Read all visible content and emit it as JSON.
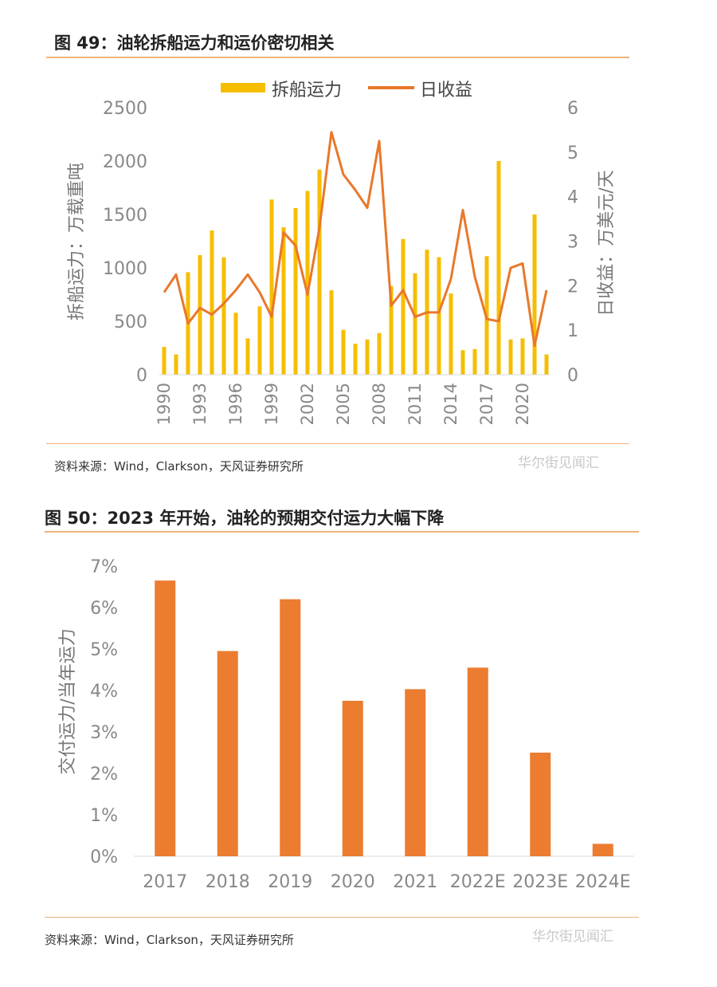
{
  "figure49": {
    "title": "图 49：油轮拆船运力和运价密切相关",
    "source": "资料来源：Wind，Clarkson，天风证券研究所",
    "watermark": "华尔街见闻汇",
    "legend": {
      "bar": "拆船运力",
      "line": "日收益"
    },
    "colors": {
      "bar": "#f6be00",
      "line": "#e8782b"
    }
  },
  "figure50": {
    "title": "图 50：2023 年开始，油轮的预期交付运力大幅下降",
    "source": "资料来源：Wind，Clarkson，天风证券研究所",
    "watermark": "华尔街见闻汇",
    "colors": {
      "bar": "#ec7c30"
    }
  },
  "chart_data": [
    {
      "type": "bar",
      "title": "图 49：油轮拆船运力和运价密切相关",
      "ylabel": "拆船运力：万载重吨",
      "y2label": "日收益：万美元/天",
      "ylim": [
        0,
        2500
      ],
      "y2lim": [
        0,
        6
      ],
      "yticks": [
        0,
        500,
        1000,
        1500,
        2000,
        2500
      ],
      "y2ticks": [
        0,
        1,
        2,
        3,
        4,
        5,
        6
      ],
      "x": [
        1990,
        1991,
        1992,
        1993,
        1994,
        1995,
        1996,
        1997,
        1998,
        1999,
        2000,
        2001,
        2002,
        2003,
        2004,
        2005,
        2006,
        2007,
        2008,
        2009,
        2010,
        2011,
        2012,
        2013,
        2014,
        2015,
        2016,
        2017,
        2018,
        2019,
        2020,
        2021,
        2022
      ],
      "xticks": [
        "1990",
        "1993",
        "1996",
        "1999",
        "2002",
        "2005",
        "2008",
        "2011",
        "2014",
        "2017",
        "2020"
      ],
      "legend_position": "top",
      "series": [
        {
          "name": "拆船运力",
          "type": "bar",
          "axis": "left",
          "values": [
            260,
            190,
            960,
            1120,
            1350,
            1100,
            580,
            340,
            640,
            1640,
            1380,
            1560,
            1720,
            1920,
            790,
            420,
            290,
            330,
            390,
            830,
            1270,
            950,
            1170,
            1100,
            760,
            230,
            240,
            1110,
            2000,
            330,
            340,
            1500,
            190
          ]
        },
        {
          "name": "日收益",
          "type": "line",
          "axis": "right",
          "values": [
            1.85,
            2.25,
            1.15,
            1.5,
            1.35,
            1.6,
            1.9,
            2.25,
            1.85,
            1.3,
            3.2,
            2.9,
            1.8,
            3.3,
            5.45,
            4.5,
            4.15,
            3.75,
            5.25,
            1.55,
            1.9,
            1.3,
            1.4,
            1.4,
            2.15,
            3.7,
            2.2,
            1.25,
            1.2,
            2.4,
            2.5,
            0.65,
            1.9
          ]
        }
      ]
    },
    {
      "type": "bar",
      "title": "图 50：2023 年开始，油轮的预期交付运力大幅下降",
      "ylabel": "交付运力/当年运力",
      "ylim": [
        0,
        7
      ],
      "yticks": [
        "0%",
        "1%",
        "2%",
        "3%",
        "4%",
        "5%",
        "6%",
        "7%"
      ],
      "categories": [
        "2017",
        "2018",
        "2019",
        "2020",
        "2021",
        "2022E",
        "2023E",
        "2024E"
      ],
      "values": [
        6.65,
        4.95,
        6.2,
        3.75,
        4.03,
        4.55,
        2.5,
        0.3
      ],
      "unit": "%"
    }
  ]
}
